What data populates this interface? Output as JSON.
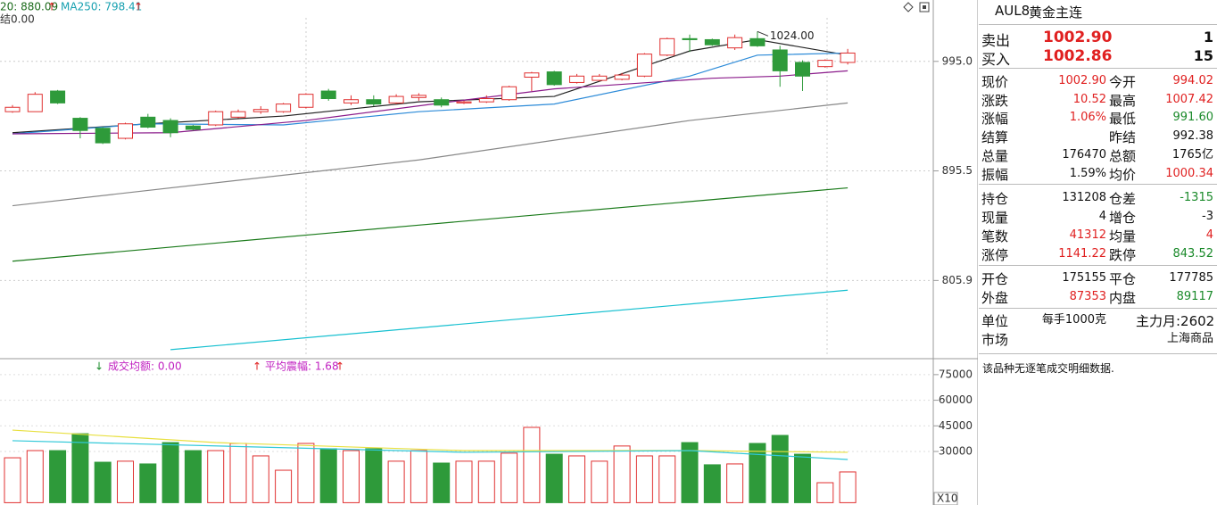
{
  "price_chart": {
    "type": "candlestick",
    "log_scale": true,
    "ylim": [
      752,
      1051
    ],
    "yticks": [
      805.9,
      895.5,
      {
        "value": 995,
        "label": "995.0"
      }
    ],
    "legend": [
      {
        "text": "20: 880.09",
        "arrow": "↑"
      },
      {
        "text": "MA250: 798.41",
        "arrow": "↑"
      }
    ],
    "legend_line2": "结0.00",
    "annotation": {
      "text": "1024.00",
      "value": 1024,
      "index": 33
    },
    "up_color": "#e03030",
    "down_color": "#2e9a3a",
    "open": [
      948,
      948,
      967,
      942,
      933,
      924,
      943,
      940,
      935,
      936,
      943,
      948,
      948,
      952,
      967,
      956,
      959,
      956,
      961,
      959,
      956,
      957,
      959,
      980,
      985,
      975,
      977,
      978,
      981,
      1001,
      1017,
      1016,
      1008,
      1017,
      1006,
      994,
      990,
      994
    ],
    "close": [
      952,
      964,
      956,
      931,
      920,
      937,
      934,
      929,
      932,
      948,
      948,
      950,
      955,
      964,
      960,
      959,
      955,
      962,
      963,
      954,
      957,
      960,
      971,
      984,
      973,
      981,
      981,
      982,
      1002,
      1017,
      1016,
      1011,
      1018,
      1010,
      986,
      981,
      996,
      1003
    ],
    "high": [
      954,
      966,
      968,
      943,
      934,
      938,
      946,
      942,
      936,
      949,
      950,
      953,
      956,
      965,
      969,
      963,
      963,
      964,
      965,
      961,
      958,
      963,
      972,
      985,
      986,
      983,
      983,
      984,
      1003,
      1018,
      1021,
      1017,
      1021,
      1024,
      1010,
      996,
      997,
      1007
    ],
    "low": [
      947,
      948,
      955,
      924,
      919,
      923,
      933,
      925,
      931,
      935,
      942,
      946,
      947,
      951,
      958,
      954,
      953,
      955,
      958,
      952,
      955,
      956,
      958,
      967,
      972,
      974,
      976,
      977,
      980,
      1000,
      1004,
      1010,
      1006,
      1009,
      971,
      967,
      989,
      992
    ],
    "ma_series": [
      {
        "color": "#222222",
        "x": [
          0,
          6,
          12,
          18,
          24,
          30,
          33,
          37
        ],
        "values": [
          929,
          937,
          944,
          957,
          962,
          1005,
          1016,
          1001
        ]
      },
      {
        "color": "#2b8ad8",
        "x": [
          0,
          6,
          12,
          18,
          24,
          30,
          33,
          37
        ],
        "values": [
          928,
          937,
          936,
          948,
          955,
          981,
          1001,
          1003
        ]
      },
      {
        "color": "#8a1a8a",
        "x": [
          0,
          7,
          13,
          19,
          24,
          31,
          34,
          37
        ],
        "values": [
          928,
          929,
          940,
          956,
          969,
          979,
          981,
          986
        ]
      },
      {
        "color": "#888888",
        "x": [
          0,
          18,
          30,
          37
        ],
        "values": [
          866,
          905,
          940,
          956
        ]
      },
      {
        "color": "#1a7a1a",
        "x": [
          0,
          18,
          37
        ],
        "values": [
          821,
          850,
          881
        ]
      },
      {
        "color": "#17c0d0",
        "x": [
          7,
          37
        ],
        "values": [
          754,
          798.41
        ]
      }
    ]
  },
  "volume_chart": {
    "type": "bar",
    "ylim": [
      0,
      80000
    ],
    "yticks": [
      30000,
      45000,
      60000,
      75000
    ],
    "scale_label": "X10",
    "legend": [
      {
        "arrow": "↓",
        "text": "成交均额: 0.00"
      },
      {
        "arrow": "↑",
        "text": "平均震幅: 1.68",
        "arrow_after": "↑"
      }
    ],
    "values": [
      26300,
      30500,
      30500,
      40400,
      23700,
      24300,
      22700,
      35200,
      30500,
      30500,
      34700,
      27400,
      19000,
      34700,
      31600,
      30500,
      31600,
      24300,
      30500,
      23200,
      24300,
      24300,
      29000,
      44100,
      28400,
      27400,
      24300,
      33200,
      27400,
      27400,
      35200,
      22200,
      22700,
      34700,
      39400,
      28400,
      11700,
      18000
    ],
    "ma_series": [
      {
        "color": "#e8e040",
        "x": [
          0,
          9,
          20,
          30,
          37
        ],
        "values": [
          42500,
          35200,
          30500,
          30500,
          29500
        ]
      },
      {
        "color": "#30c8d8",
        "x": [
          0,
          20,
          30,
          37
        ],
        "values": [
          36300,
          29500,
          30500,
          25300
        ]
      }
    ]
  },
  "quote_panel": {
    "code": "AUL8",
    "name": "黄金主连",
    "bidask": [
      {
        "label": "卖出",
        "price": "1002.90",
        "qty": "1"
      },
      {
        "label": "买入",
        "price": "1002.86",
        "qty": "15"
      }
    ],
    "rows": [
      {
        "l1": "现价",
        "v1": "1002.90",
        "c1": "r",
        "l2": "今开",
        "v2": "994.02",
        "c2": "r"
      },
      {
        "l1": "涨跌",
        "v1": "10.52",
        "c1": "r",
        "l2": "最高",
        "v2": "1007.42",
        "c2": "r"
      },
      {
        "l1": "涨幅",
        "v1": "1.06%",
        "c1": "r",
        "l2": "最低",
        "v2": "991.60",
        "c2": "g"
      },
      {
        "l1": "结算",
        "v1": "",
        "c1": "k",
        "l2": "昨结",
        "v2": "992.38",
        "c2": "k"
      },
      {
        "l1": "总量",
        "v1": "176470",
        "c1": "k",
        "l2": "总额",
        "v2": "1765亿",
        "c2": "k"
      },
      {
        "l1": "振幅",
        "v1": "1.59%",
        "c1": "k",
        "l2": "均价",
        "v2": "1000.34",
        "c2": "r"
      },
      {
        "l1": "持仓",
        "v1": "131208",
        "c1": "k",
        "l2": "仓差",
        "v2": "-1315",
        "c2": "g"
      },
      {
        "l1": "现量",
        "v1": "4",
        "c1": "k",
        "l2": "增仓",
        "v2": "-3",
        "c2": "k"
      },
      {
        "l1": "笔数",
        "v1": "41312",
        "c1": "r",
        "l2": "均量",
        "v2": "4",
        "c2": "r"
      },
      {
        "l1": "涨停",
        "v1": "1141.22",
        "c1": "r",
        "l2": "跌停",
        "v2": "843.52",
        "c2": "g"
      },
      {
        "l1": "开仓",
        "v1": "175155",
        "c1": "k",
        "l2": "平仓",
        "v2": "177785",
        "c2": "k"
      },
      {
        "l1": "外盘",
        "v1": "87353",
        "c1": "r",
        "l2": "内盘",
        "v2": "89117",
        "c2": "g"
      },
      {
        "l1": "单位",
        "v1": "每手1000克",
        "c1": "k",
        "l2": "主力月:2602",
        "v2": "",
        "c2": "k"
      },
      {
        "l1": "市场",
        "v1": "",
        "c1": "k",
        "l2": "",
        "v2": "上海商品",
        "c2": "k"
      }
    ],
    "note": "该品种无逐笔成交明细数据."
  }
}
